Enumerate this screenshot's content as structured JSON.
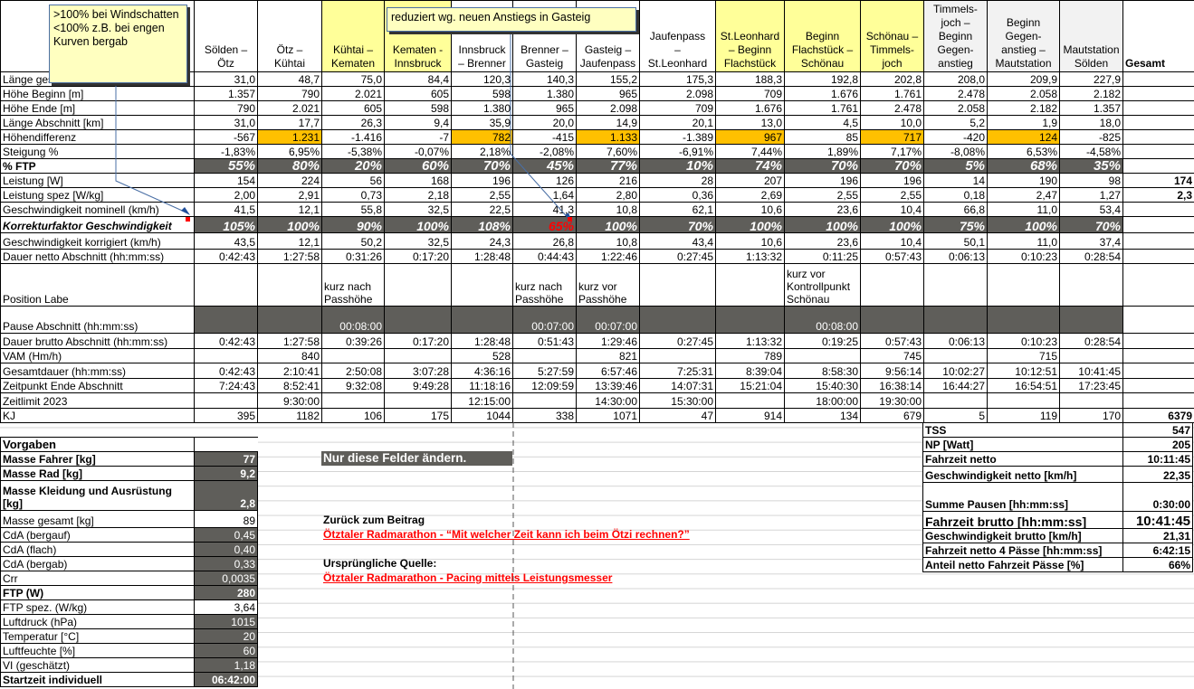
{
  "segments": [
    "Sölden –\nÖtz",
    "Ötz –\nKühtai",
    "Kühtai –\nKematen",
    "Kematen -\nInnsbruck",
    "Innsbruck\n– Brenner",
    "Brenner –\nGasteig",
    "Gasteig –\nJaufenpass",
    "Jaufenpass\n–\nSt.Leonhard",
    "St.Leonhard\n– Beginn\nFlachstück",
    "Beginn\nFlachstück –\nSchönau",
    "Schönau –\nTimmels-\njoch",
    "Timmels-\njoch –\nBeginn\nGegen-\nanstieg",
    "Beginn\nGegen-\nanstieg –\nMautstation",
    "Mautstation\nSölden"
  ],
  "segment_header_fill": [
    "",
    "",
    "yellow",
    "yellow",
    "",
    "",
    "",
    "",
    "yellow",
    "yellow",
    "yellow",
    "grey",
    "grey",
    "grey"
  ],
  "total_label": "Gesamt",
  "colors": {
    "dark_input": "#5f5e5a",
    "highlight": "#ffc000",
    "header_yellow": "#ffff99",
    "warning_red": "#ff0000",
    "comment_bg": "#ffffc0"
  },
  "rows": [
    {
      "key": "len_total",
      "label": "Länge gesamt [km]",
      "values": [
        "31,0",
        "48,7",
        "75,0",
        "84,4",
        "120,3",
        "140,3",
        "155,2",
        "175,3",
        "188,3",
        "192,8",
        "202,8",
        "208,0",
        "209,9",
        "227,9"
      ],
      "total": ""
    },
    {
      "key": "h_start",
      "label": "Höhe Beginn [m]",
      "values": [
        "1.357",
        "790",
        "2.021",
        "605",
        "598",
        "1.380",
        "965",
        "2.098",
        "709",
        "1.676",
        "1.761",
        "2.478",
        "2.058",
        "2.182"
      ],
      "total": ""
    },
    {
      "key": "h_end",
      "label": "Höhe Ende [m]",
      "values": [
        "790",
        "2.021",
        "605",
        "598",
        "1.380",
        "965",
        "2.098",
        "709",
        "1.676",
        "1.761",
        "2.478",
        "2.058",
        "2.182",
        "1.357"
      ],
      "total": ""
    },
    {
      "key": "len_seg",
      "label": "Länge Abschnitt [km]",
      "values": [
        "31,0",
        "17,7",
        "26,3",
        "9,4",
        "35,9",
        "20,0",
        "14,9",
        "20,1",
        "13,0",
        "4,5",
        "10,0",
        "5,2",
        "1,9",
        "18,0"
      ],
      "total": ""
    },
    {
      "key": "h_diff",
      "label": "Höhendifferenz",
      "values": [
        "-567",
        "1.231",
        "-1.416",
        "-7",
        "782",
        "-415",
        "1.133",
        "-1.389",
        "967",
        "85",
        "717",
        "-420",
        "124",
        "-825"
      ],
      "total": "",
      "highlight": [
        1,
        4,
        6,
        8,
        10,
        12
      ]
    },
    {
      "key": "grade",
      "label": "Steigung %",
      "values": [
        "-1,83%",
        "6,95%",
        "-5,38%",
        "-0,07%",
        "2,18%",
        "-2,08%",
        "7,60%",
        "-6,91%",
        "7,44%",
        "1,89%",
        "7,17%",
        "-8,08%",
        "6,53%",
        "-4,58%"
      ],
      "total": ""
    },
    {
      "key": "ftp_pct",
      "label": "% FTP",
      "values": [
        "55%",
        "80%",
        "20%",
        "60%",
        "70%",
        "45%",
        "77%",
        "10%",
        "74%",
        "70%",
        "70%",
        "5%",
        "68%",
        "35%"
      ],
      "total": ""
    },
    {
      "key": "power",
      "label": "Leistung [W]",
      "values": [
        "154",
        "224",
        "56",
        "168",
        "196",
        "126",
        "216",
        "28",
        "207",
        "196",
        "196",
        "14",
        "190",
        "98"
      ],
      "total": "174"
    },
    {
      "key": "power_spec",
      "label": "Leistung spez [W/kg]",
      "values": [
        "2,00",
        "2,91",
        "0,73",
        "2,18",
        "2,55",
        "1,64",
        "2,80",
        "0,36",
        "2,69",
        "2,55",
        "2,55",
        "0,18",
        "2,47",
        "1,27"
      ],
      "total": "2,3"
    },
    {
      "key": "speed_nom",
      "label": "Geschwindigkeit nominell (km/h)",
      "values": [
        "41,5",
        "12,1",
        "55,8",
        "32,5",
        "22,5",
        "41,3",
        "10,8",
        "62,1",
        "10,6",
        "23,6",
        "10,4",
        "66,8",
        "11,0",
        "53,4"
      ],
      "total": ""
    },
    {
      "key": "corr",
      "label": "Korrekturfaktor Geschwindigkeit",
      "values": [
        "105%",
        "100%",
        "90%",
        "100%",
        "108%",
        "65%",
        "100%",
        "70%",
        "100%",
        "100%",
        "100%",
        "75%",
        "100%",
        "70%"
      ],
      "total": "",
      "red": [
        5
      ]
    },
    {
      "key": "speed_corr",
      "label": "Geschwindigkeit korrigiert (km/h)",
      "values": [
        "43,5",
        "12,1",
        "50,2",
        "32,5",
        "24,3",
        "26,8",
        "10,8",
        "43,4",
        "10,6",
        "23,6",
        "10,4",
        "50,1",
        "11,0",
        "37,4"
      ],
      "total": ""
    },
    {
      "key": "dur_net",
      "label": "Dauer netto Abschnitt (hh:mm:ss)",
      "values": [
        "0:42:43",
        "1:27:58",
        "0:31:26",
        "0:17:20",
        "1:28:48",
        "0:44:43",
        "1:22:46",
        "0:27:45",
        "1:13:32",
        "0:11:25",
        "0:57:43",
        "0:06:13",
        "0:10:23",
        "0:28:54"
      ],
      "total": ""
    },
    {
      "key": "labe",
      "label": "Position Labe",
      "values": [
        "",
        "",
        "kurz nach\nPasshöhe",
        "",
        "",
        "kurz nach\nPasshöhe",
        "kurz vor\nPasshöhe",
        "",
        "",
        "kurz vor\nKontrollpunkt\nSchönau",
        "",
        "",
        "",
        ""
      ],
      "total": ""
    },
    {
      "key": "pause",
      "label": "Pause Abschnitt (hh:mm:ss)",
      "values": [
        "",
        "",
        "00:08:00",
        "",
        "",
        "00:07:00",
        "00:07:00",
        "",
        "",
        "00:08:00",
        "",
        "",
        "",
        ""
      ],
      "total": ""
    },
    {
      "key": "dur_gross",
      "label": "Dauer brutto Abschnitt (hh:mm:ss)",
      "values": [
        "0:42:43",
        "1:27:58",
        "0:39:26",
        "0:17:20",
        "1:28:48",
        "0:51:43",
        "1:29:46",
        "0:27:45",
        "1:13:32",
        "0:19:25",
        "0:57:43",
        "0:06:13",
        "0:10:23",
        "0:28:54"
      ],
      "total": ""
    },
    {
      "key": "vam",
      "label": "VAM (Hm/h)",
      "values": [
        "",
        "840",
        "",
        "",
        "528",
        "",
        "821",
        "",
        "789",
        "",
        "745",
        "",
        "715",
        ""
      ],
      "total": ""
    },
    {
      "key": "total_dur",
      "label": "Gesamtdauer (hh:mm:ss)",
      "values": [
        "0:42:43",
        "2:10:41",
        "2:50:08",
        "3:07:28",
        "4:36:16",
        "5:27:59",
        "6:57:46",
        "7:25:31",
        "8:39:04",
        "8:58:30",
        "9:56:14",
        "10:02:27",
        "10:12:51",
        "10:41:45"
      ],
      "total": ""
    },
    {
      "key": "end_time",
      "label": "Zeitpunkt Ende Abschnitt",
      "values": [
        "7:24:43",
        "8:52:41",
        "9:32:08",
        "9:49:28",
        "11:18:16",
        "12:09:59",
        "13:39:46",
        "14:07:31",
        "15:21:04",
        "15:40:30",
        "16:38:14",
        "16:44:27",
        "16:54:51",
        "17:23:45"
      ],
      "total": ""
    },
    {
      "key": "limit",
      "label": "Zeitlimit 2023",
      "values": [
        "",
        "9:30:00",
        "",
        "",
        "12:15:00",
        "",
        "14:30:00",
        "15:30:00",
        "",
        "18:00:00",
        "19:30:00",
        "",
        "",
        ""
      ],
      "total": ""
    },
    {
      "key": "kj",
      "label": "KJ",
      "values": [
        "395",
        "1182",
        "106",
        "175",
        "1044",
        "338",
        "1071",
        "47",
        "914",
        "134",
        "679",
        "5",
        "119",
        "170"
      ],
      "total": "6379"
    }
  ],
  "inputs": {
    "title": "Vorgaben",
    "items": [
      {
        "label": "Masse Fahrer [kg]",
        "value": "77",
        "editable": true,
        "bold": true
      },
      {
        "label": "Masse Rad [kg]",
        "value": "9,2",
        "editable": true,
        "bold": true
      },
      {
        "label": "Masse Kleidung und Ausrüstung [kg]",
        "value": "2,8",
        "editable": true,
        "bold": true
      },
      {
        "label": "Masse gesamt [kg]",
        "value": "89",
        "editable": false
      },
      {
        "label": "CdA (bergauf)",
        "value": "0,45",
        "editable": true
      },
      {
        "label": "CdA (flach)",
        "value": "0,40",
        "editable": true
      },
      {
        "label": "CdA (bergab)",
        "value": "0,33",
        "editable": true
      },
      {
        "label": "Crr",
        "value": "0,0035",
        "editable": true
      },
      {
        "label": "FTP (W)",
        "value": "280",
        "editable": true,
        "bold": true
      },
      {
        "label": "FTP spez. (W/kg)",
        "value": "3,64",
        "editable": false
      },
      {
        "label": "Luftdruck (hPa)",
        "value": "1015",
        "editable": true
      },
      {
        "label": "Temperatur [°C]",
        "value": "20",
        "editable": true
      },
      {
        "label": "Luftfeuchte [%]",
        "value": "60",
        "editable": true
      },
      {
        "label": "VI (geschätzt)",
        "value": "1,18",
        "editable": true
      },
      {
        "label": "Startzeit individuell",
        "value": "06:42:00",
        "editable": true,
        "bold": true
      }
    ]
  },
  "summary": [
    {
      "label": "TSS",
      "value": "547"
    },
    {
      "label": "NP [Watt]",
      "value": "205"
    },
    {
      "label": "Fahrzeit netto",
      "value": "10:11:45"
    },
    {
      "label": "Geschwindigkeit netto [km/h]",
      "value": "22,35"
    },
    {
      "label": "Summe Pausen [hh:mm:ss]",
      "value": "0:30:00"
    },
    {
      "label": "Fahrzeit brutto [hh:mm:ss]",
      "value": "10:41:45"
    },
    {
      "label": "Geschwindigkeit brutto [km/h]",
      "value": "21,31"
    },
    {
      "label": "Fahrzeit netto 4 Pässe [hh:mm:ss]",
      "value": "6:42:15"
    },
    {
      "label": "Anteil netto Fahrzeit Pässe [%]",
      "value": "66%"
    }
  ],
  "notice": "Nur diese Felder ändern.",
  "links": {
    "back_label": "Zurück zum Beitrag",
    "back_link": "Ötztaler Radmarathon - “Mit welcher Zeit kann ich beim Ötzi rechnen?”",
    "source_label": "Ursprüngliche Quelle:",
    "source_link": "Ötztaler Radmarathon - Pacing mittels Leistungsmesser"
  },
  "comments": {
    "windschatten": ">100% bei Windschatten\n<100% z.B. bei engen\nKurven bergab",
    "gasteig": "reduziert wg. neuen Anstiegs in Gasteig"
  }
}
